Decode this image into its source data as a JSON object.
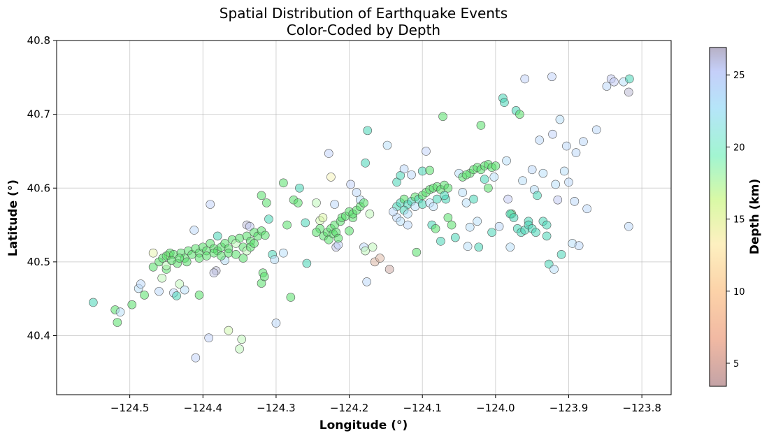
{
  "chart_data": {
    "type": "scatter",
    "title": [
      "Spatial Distribution of Earthquake Events",
      "Color-Coded by Depth"
    ],
    "xlabel": "Longitude (°)",
    "ylabel": "Latitude (°)",
    "xlim": [
      -124.6,
      -123.76
    ],
    "ylim": [
      40.32,
      40.8
    ],
    "xticks": [
      -124.5,
      -124.4,
      -124.3,
      -124.2,
      -124.1,
      -124.0,
      -123.9,
      -123.8
    ],
    "xtick_labels": [
      "−124.5",
      "−124.4",
      "−124.3",
      "−124.2",
      "−124.1",
      "−124.0",
      "−123.9",
      "−123.8"
    ],
    "yticks": [
      40.4,
      40.5,
      40.6,
      40.7,
      40.8
    ],
    "ytick_labels": [
      "40.4",
      "40.5",
      "40.6",
      "40.7",
      "40.8"
    ],
    "grid": true,
    "colorbar": {
      "label": "Depth (km)",
      "range": [
        3.4,
        26.9
      ],
      "ticks": [
        5,
        10,
        15,
        20,
        25
      ],
      "tick_labels": [
        "5",
        "10",
        "15",
        "20",
        "25"
      ],
      "colors": [
        "#c4a3a6",
        "#fcd2a8",
        "#fdf0c0",
        "#d9f9a6",
        "#a2f5d1",
        "#b5e5f9",
        "#c5cff9",
        "#b7b1c6"
      ]
    },
    "points": [
      [
        -124.55,
        40.445,
        20
      ],
      [
        -124.52,
        40.435,
        18
      ],
      [
        -124.517,
        40.418,
        17
      ],
      [
        -124.513,
        40.432,
        21
      ],
      [
        -124.497,
        40.442,
        17
      ],
      [
        -124.488,
        40.464,
        21
      ],
      [
        -124.485,
        40.47,
        22
      ],
      [
        -124.48,
        40.455,
        18
      ],
      [
        -124.468,
        40.512,
        12
      ],
      [
        -124.468,
        40.493,
        16
      ],
      [
        -124.46,
        40.46,
        22
      ],
      [
        -124.456,
        40.478,
        15
      ],
      [
        -124.45,
        40.49,
        16
      ],
      [
        -124.447,
        40.509,
        12
      ],
      [
        -124.44,
        40.458,
        22
      ],
      [
        -124.436,
        40.454,
        20
      ],
      [
        -124.432,
        40.47,
        15
      ],
      [
        -124.425,
        40.462,
        21
      ],
      [
        -124.412,
        40.543,
        22
      ],
      [
        -124.41,
        40.37,
        23
      ],
      [
        -124.405,
        40.455,
        18
      ],
      [
        -124.39,
        40.578,
        23
      ],
      [
        -124.392,
        40.397,
        23
      ],
      [
        -124.382,
        40.488,
        26
      ],
      [
        -124.385,
        40.485,
        25
      ],
      [
        -124.38,
        40.535,
        20
      ],
      [
        -124.37,
        40.502,
        21
      ],
      [
        -124.365,
        40.407,
        14
      ],
      [
        -124.35,
        40.382,
        15
      ],
      [
        -124.347,
        40.395,
        15
      ],
      [
        -124.34,
        40.55,
        26
      ],
      [
        -124.336,
        40.548,
        24
      ],
      [
        -124.32,
        40.471,
        18
      ],
      [
        -124.318,
        40.485,
        17
      ],
      [
        -124.316,
        40.48,
        17
      ],
      [
        -124.32,
        40.59,
        17
      ],
      [
        -124.313,
        40.58,
        17
      ],
      [
        -124.31,
        40.558,
        19
      ],
      [
        -124.305,
        40.51,
        20
      ],
      [
        -124.302,
        40.503,
        21
      ],
      [
        -124.3,
        40.417,
        22
      ],
      [
        -124.29,
        40.512,
        21
      ],
      [
        -124.29,
        40.607,
        18
      ],
      [
        -124.285,
        40.55,
        16
      ],
      [
        -124.28,
        40.452,
        17
      ],
      [
        -124.276,
        40.584,
        16
      ],
      [
        -124.27,
        40.58,
        17
      ],
      [
        -124.268,
        40.6,
        19
      ],
      [
        -124.26,
        40.553,
        20
      ],
      [
        -124.258,
        40.498,
        20
      ],
      [
        -124.245,
        40.58,
        15
      ],
      [
        -124.24,
        40.556,
        14
      ],
      [
        -124.236,
        40.56,
        13
      ],
      [
        -124.228,
        40.647,
        23
      ],
      [
        -124.225,
        40.615,
        11
      ],
      [
        -124.22,
        40.578,
        22
      ],
      [
        -124.218,
        40.52,
        25
      ],
      [
        -124.215,
        40.523,
        23
      ],
      [
        -124.2,
        40.542,
        17
      ],
      [
        -124.198,
        40.605,
        23
      ],
      [
        -124.195,
        40.56,
        18
      ],
      [
        -124.19,
        40.594,
        22
      ],
      [
        -124.185,
        40.584,
        21
      ],
      [
        -124.18,
        40.52,
        22
      ],
      [
        -124.178,
        40.515,
        15
      ],
      [
        -124.176,
        40.473,
        22
      ],
      [
        -124.172,
        40.565,
        15
      ],
      [
        -124.168,
        40.52,
        15
      ],
      [
        -124.165,
        40.5,
        5
      ],
      [
        -124.158,
        40.505,
        5
      ],
      [
        -124.145,
        40.49,
        4
      ],
      [
        -124.175,
        40.678,
        20
      ],
      [
        -124.178,
        40.634,
        20
      ],
      [
        -124.148,
        40.658,
        21
      ],
      [
        -124.135,
        40.608,
        19
      ],
      [
        -124.13,
        40.617,
        20
      ],
      [
        -124.125,
        40.626,
        22
      ],
      [
        -124.12,
        40.55,
        22
      ],
      [
        -124.115,
        40.618,
        22
      ],
      [
        -124.108,
        40.513,
        18
      ],
      [
        -124.1,
        40.623,
        19
      ],
      [
        -124.095,
        40.65,
        23
      ],
      [
        -124.09,
        40.624,
        16
      ],
      [
        -124.087,
        40.55,
        19
      ],
      [
        -124.082,
        40.545,
        17
      ],
      [
        -124.075,
        40.528,
        19
      ],
      [
        -124.072,
        40.697,
        18
      ],
      [
        -124.068,
        40.585,
        19
      ],
      [
        -124.065,
        40.56,
        18
      ],
      [
        -124.06,
        40.55,
        17
      ],
      [
        -124.055,
        40.533,
        19
      ],
      [
        -124.05,
        40.62,
        21
      ],
      [
        -124.045,
        40.594,
        21
      ],
      [
        -124.04,
        40.58,
        21
      ],
      [
        -124.038,
        40.521,
        21
      ],
      [
        -124.035,
        40.547,
        21
      ],
      [
        -124.03,
        40.585,
        20
      ],
      [
        -124.025,
        40.555,
        21
      ],
      [
        -124.023,
        40.52,
        19
      ],
      [
        -124.02,
        40.685,
        17
      ],
      [
        -124.015,
        40.612,
        20
      ],
      [
        -124.01,
        40.6,
        17
      ],
      [
        -124.005,
        40.54,
        19
      ],
      [
        -124.002,
        40.615,
        21
      ],
      [
        -123.995,
        40.548,
        22
      ],
      [
        -123.99,
        40.722,
        20
      ],
      [
        -123.988,
        40.716,
        20
      ],
      [
        -123.985,
        40.637,
        21
      ],
      [
        -123.983,
        40.585,
        24
      ],
      [
        -123.98,
        40.52,
        21
      ],
      [
        -123.978,
        40.565,
        18
      ],
      [
        -123.972,
        40.705,
        20
      ],
      [
        -123.967,
        40.7,
        18
      ],
      [
        -123.963,
        40.61,
        21
      ],
      [
        -123.96,
        40.748,
        23
      ],
      [
        -123.955,
        40.555,
        20
      ],
      [
        -123.95,
        40.625,
        22
      ],
      [
        -123.947,
        40.598,
        21
      ],
      [
        -123.943,
        40.59,
        19
      ],
      [
        -123.94,
        40.665,
        22
      ],
      [
        -123.935,
        40.62,
        21
      ],
      [
        -123.93,
        40.535,
        20
      ],
      [
        -123.927,
        40.497,
        19
      ],
      [
        -123.923,
        40.751,
        23
      ],
      [
        -123.922,
        40.673,
        23
      ],
      [
        -123.92,
        40.49,
        21
      ],
      [
        -123.918,
        40.605,
        21
      ],
      [
        -123.915,
        40.584,
        24
      ],
      [
        -123.912,
        40.693,
        21
      ],
      [
        -123.91,
        40.51,
        20
      ],
      [
        -123.906,
        40.623,
        21
      ],
      [
        -123.903,
        40.657,
        22
      ],
      [
        -123.9,
        40.608,
        22
      ],
      [
        -123.895,
        40.525,
        21
      ],
      [
        -123.892,
        40.582,
        22
      ],
      [
        -123.89,
        40.648,
        22
      ],
      [
        -123.886,
        40.522,
        22
      ],
      [
        -123.88,
        40.663,
        22
      ],
      [
        -123.875,
        40.572,
        22
      ],
      [
        -123.862,
        40.679,
        22
      ],
      [
        -123.848,
        40.738,
        22
      ],
      [
        -123.842,
        40.748,
        24
      ],
      [
        -123.838,
        40.744,
        24
      ],
      [
        -123.825,
        40.744,
        21
      ],
      [
        -123.817,
        40.748,
        19
      ],
      [
        -123.818,
        40.73,
        26
      ],
      [
        -123.818,
        40.548,
        22
      ],
      [
        -124.46,
        40.5,
        16
      ],
      [
        -124.455,
        40.505,
        16
      ],
      [
        -124.45,
        40.508,
        17
      ],
      [
        -124.445,
        40.512,
        16
      ],
      [
        -124.44,
        40.51,
        17
      ],
      [
        -124.435,
        40.498,
        18
      ],
      [
        -124.43,
        40.512,
        17
      ],
      [
        -124.425,
        40.505,
        17
      ],
      [
        -124.42,
        40.515,
        17
      ],
      [
        -124.415,
        40.51,
        17
      ],
      [
        -124.41,
        40.518,
        16
      ],
      [
        -124.405,
        40.512,
        17
      ],
      [
        -124.4,
        40.52,
        17
      ],
      [
        -124.395,
        40.515,
        18
      ],
      [
        -124.39,
        40.525,
        16
      ],
      [
        -124.385,
        40.518,
        17
      ],
      [
        -124.38,
        40.515,
        18
      ],
      [
        -124.375,
        40.52,
        17
      ],
      [
        -124.37,
        40.525,
        16
      ],
      [
        -124.365,
        40.518,
        17
      ],
      [
        -124.36,
        40.53,
        16
      ],
      [
        -124.355,
        40.525,
        15
      ],
      [
        -124.35,
        40.532,
        17
      ],
      [
        -124.345,
        40.52,
        17
      ],
      [
        -124.34,
        40.535,
        16
      ],
      [
        -124.335,
        40.528,
        17
      ],
      [
        -124.33,
        40.54,
        16
      ],
      [
        -124.325,
        40.535,
        17
      ],
      [
        -124.32,
        40.542,
        17
      ],
      [
        -124.315,
        40.536,
        16
      ],
      [
        -124.405,
        40.505,
        17
      ],
      [
        -124.395,
        40.508,
        16
      ],
      [
        -124.385,
        40.512,
        16
      ],
      [
        -124.375,
        40.508,
        17
      ],
      [
        -124.365,
        40.512,
        18
      ],
      [
        -124.355,
        40.51,
        17
      ],
      [
        -124.345,
        40.505,
        16
      ],
      [
        -124.34,
        40.515,
        15
      ],
      [
        -124.335,
        40.52,
        16
      ],
      [
        -124.33,
        40.525,
        17
      ],
      [
        -124.45,
        40.495,
        15
      ],
      [
        -124.443,
        40.502,
        16
      ],
      [
        -124.432,
        40.505,
        17
      ],
      [
        -124.422,
        40.5,
        17
      ],
      [
        -124.235,
        40.535,
        18
      ],
      [
        -124.23,
        40.54,
        17
      ],
      [
        -124.228,
        40.53,
        18
      ],
      [
        -124.225,
        40.545,
        17
      ],
      [
        -124.222,
        40.538,
        17
      ],
      [
        -124.22,
        40.55,
        18
      ],
      [
        -124.218,
        40.54,
        17
      ],
      [
        -124.215,
        40.532,
        18
      ],
      [
        -124.24,
        40.545,
        17
      ],
      [
        -124.245,
        40.54,
        18
      ],
      [
        -124.212,
        40.555,
        17
      ],
      [
        -124.21,
        40.56,
        17
      ],
      [
        -124.205,
        40.562,
        16
      ],
      [
        -124.2,
        40.568,
        17
      ],
      [
        -124.195,
        40.565,
        16
      ],
      [
        -124.19,
        40.57,
        16
      ],
      [
        -124.185,
        40.575,
        17
      ],
      [
        -124.18,
        40.58,
        17
      ],
      [
        -124.135,
        40.575,
        20
      ],
      [
        -124.13,
        40.58,
        19
      ],
      [
        -124.125,
        40.585,
        18
      ],
      [
        -124.12,
        40.578,
        20
      ],
      [
        -124.115,
        40.582,
        19
      ],
      [
        -124.11,
        40.588,
        18
      ],
      [
        -124.105,
        40.585,
        19
      ],
      [
        -124.1,
        40.59,
        18
      ],
      [
        -124.095,
        40.594,
        17
      ],
      [
        -124.09,
        40.598,
        17
      ],
      [
        -124.085,
        40.6,
        17
      ],
      [
        -124.08,
        40.602,
        17
      ],
      [
        -124.075,
        40.598,
        18
      ],
      [
        -124.07,
        40.604,
        17
      ],
      [
        -124.065,
        40.6,
        18
      ],
      [
        -124.135,
        40.56,
        22
      ],
      [
        -124.13,
        40.555,
        21
      ],
      [
        -124.125,
        40.57,
        20
      ],
      [
        -124.12,
        40.565,
        21
      ],
      [
        -124.14,
        40.568,
        22
      ],
      [
        -124.11,
        40.575,
        21
      ],
      [
        -124.1,
        40.578,
        20
      ],
      [
        -124.09,
        40.58,
        21
      ],
      [
        -124.085,
        40.575,
        21
      ],
      [
        -124.08,
        40.585,
        20
      ],
      [
        -124.07,
        40.59,
        19
      ],
      [
        -124.035,
        40.62,
        18
      ],
      [
        -124.03,
        40.625,
        18
      ],
      [
        -124.025,
        40.628,
        17
      ],
      [
        -124.02,
        40.625,
        18
      ],
      [
        -124.015,
        40.63,
        17
      ],
      [
        -124.01,
        40.632,
        18
      ],
      [
        -124.005,
        40.628,
        17
      ],
      [
        -124.0,
        40.63,
        17
      ],
      [
        -124.045,
        40.615,
        18
      ],
      [
        -124.04,
        40.618,
        18
      ],
      [
        -123.98,
        40.565,
        19
      ],
      [
        -123.975,
        40.56,
        19
      ],
      [
        -123.97,
        40.545,
        20
      ],
      [
        -123.965,
        40.54,
        19
      ],
      [
        -123.96,
        40.543,
        19
      ],
      [
        -123.955,
        40.55,
        20
      ],
      [
        -123.95,
        40.545,
        20
      ],
      [
        -123.945,
        40.54,
        19
      ],
      [
        -123.935,
        40.555,
        20
      ],
      [
        -123.93,
        40.55,
        19
      ]
    ]
  }
}
